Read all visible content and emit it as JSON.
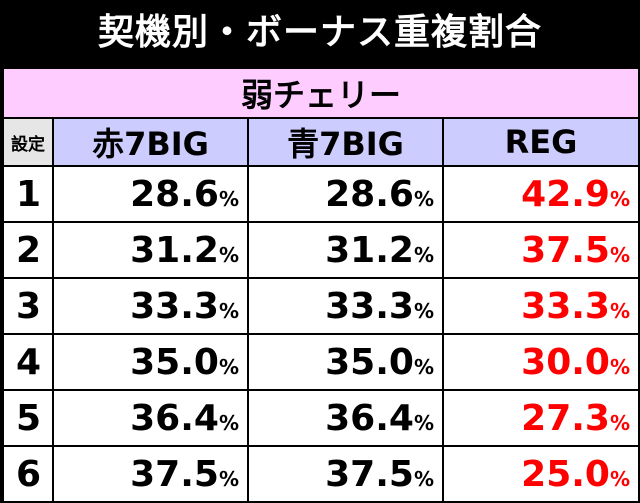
{
  "title": "契機別・ボーナス重複割合",
  "condition": "弱チェリー",
  "columns": {
    "setting": "設定",
    "red_big": "赤7BIG",
    "blue_big": "青7BIG",
    "reg": "REG"
  },
  "percent_sign": "%",
  "rows": [
    {
      "setting": "1",
      "red_big": "28.6",
      "blue_big": "28.6",
      "reg": "42.9"
    },
    {
      "setting": "2",
      "red_big": "31.2",
      "blue_big": "31.2",
      "reg": "37.5"
    },
    {
      "setting": "3",
      "red_big": "33.3",
      "blue_big": "33.3",
      "reg": "33.3"
    },
    {
      "setting": "4",
      "red_big": "35.0",
      "blue_big": "35.0",
      "reg": "30.0"
    },
    {
      "setting": "5",
      "red_big": "36.4",
      "blue_big": "36.4",
      "reg": "27.3"
    },
    {
      "setting": "6",
      "red_big": "37.5",
      "blue_big": "37.5",
      "reg": "25.0"
    }
  ],
  "colors": {
    "background": "#000000",
    "title_text": "#ffffff",
    "condition_bg": "#ffccff",
    "header_bg": "#ccccff",
    "setting_header_bg": "#e6e6e6",
    "reg_text": "#ff0000"
  }
}
